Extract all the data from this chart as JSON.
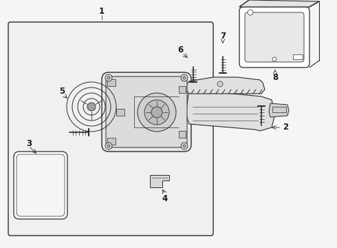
{
  "background_color": "#f5f5f5",
  "line_color": "#2a2a2a",
  "label_color": "#1a1a1a",
  "fig_w": 4.9,
  "fig_h": 3.6,
  "dpi": 100
}
